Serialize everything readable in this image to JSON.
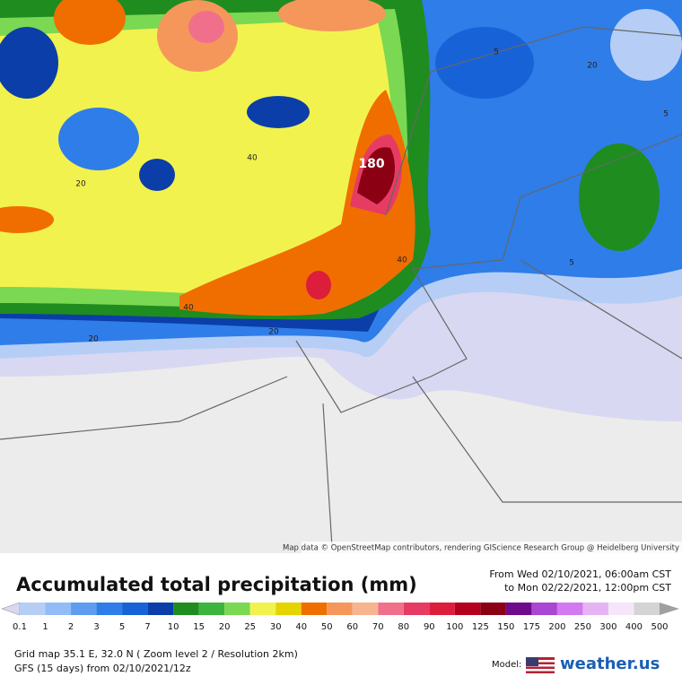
{
  "map": {
    "contour_labels": [
      "180",
      "40",
      "20",
      "40",
      "40",
      "20",
      "20",
      "5",
      "20",
      "5",
      "5"
    ],
    "attribution": "Map data © OpenStreetMap contributors, rendering GIScience Research Group @ Heidelberg University"
  },
  "header": {
    "title": "Accumulated total precipitation (mm)",
    "from": "From Wed 02/10/2021, 06:00am CST",
    "to": "to Mon 02/22/2021, 12:00pm CST"
  },
  "legend": {
    "ticks": [
      0.1,
      1,
      2,
      3,
      5,
      7,
      10,
      15,
      20,
      25,
      30,
      40,
      50,
      60,
      70,
      80,
      90,
      100,
      125,
      150,
      175,
      200,
      250,
      300,
      400,
      500
    ],
    "colors": [
      "#d8d8f2",
      "#b6cef6",
      "#92bcf5",
      "#5e9cf0",
      "#2f7de8",
      "#1862d8",
      "#0b3ea8",
      "#1f8c1f",
      "#3db43d",
      "#7ad852",
      "#f2f24e",
      "#e6d400",
      "#f06e00",
      "#f5975a",
      "#f6b58e",
      "#f0708c",
      "#e63c64",
      "#dc1e3c",
      "#b4001e",
      "#8c0014",
      "#6e0a8c",
      "#aa46d2",
      "#d278f0",
      "#e6b4f5",
      "#f5e6fa",
      "#d4d4d4",
      "#a0a0a0"
    ]
  },
  "footer": {
    "grid": "Grid map 35.1 E, 32.0 N ( Zoom level 2 / Resolution 2km)",
    "model_run": "GFS (15 days) from  02/10/2021/12z",
    "model_label": "Model:",
    "brand": "weather.us"
  }
}
